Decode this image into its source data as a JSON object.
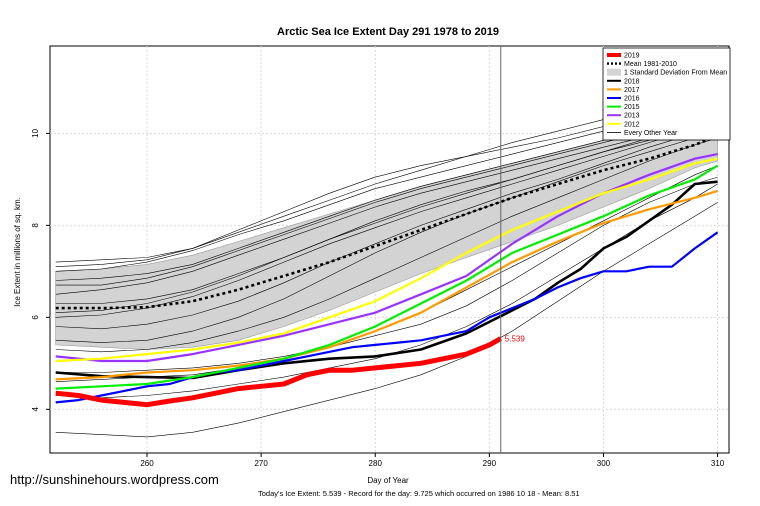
{
  "watermark": "http://sunshinehours.wordpress.com",
  "footer": "Today's Ice Extent: 5.539  - Record for the day: 9.725 which occurred on 1986 10 18  - Mean: 8.51",
  "chart_data": {
    "type": "line",
    "title": "Arctic Sea Ice Extent Day 291 1978 to 2019",
    "xlabel": "Day of Year",
    "ylabel": "Ice Extent in millions of sq. km.",
    "xlim": [
      251.5,
      311
    ],
    "ylim": [
      3.05,
      11.9
    ],
    "x_ticks": [
      260,
      270,
      280,
      290,
      300,
      310
    ],
    "y_ticks": [
      4,
      6,
      8,
      10
    ],
    "grid": true,
    "legend_position": "top-right",
    "current_day": 291,
    "current_day_label": "5.539",
    "std_band": {
      "name": "1 Standard Deviation From Mean",
      "color": "#d3d3d3",
      "x": [
        252,
        256,
        260,
        264,
        268,
        272,
        276,
        280,
        284,
        288,
        292,
        296,
        300,
        304,
        308,
        310
      ],
      "upper": [
        7.0,
        7.05,
        7.15,
        7.35,
        7.65,
        7.95,
        8.25,
        8.55,
        8.85,
        9.1,
        9.35,
        9.6,
        9.85,
        10.1,
        10.35,
        10.45
      ],
      "lower": [
        5.4,
        5.35,
        5.3,
        5.35,
        5.5,
        5.8,
        6.15,
        6.55,
        6.95,
        7.3,
        7.65,
        8.0,
        8.4,
        8.8,
        9.25,
        9.4
      ]
    },
    "other_years": {
      "name": "Every Other Year",
      "color": "#000000",
      "x": [
        252,
        256,
        260,
        264,
        268,
        272,
        276,
        280,
        284,
        288,
        292,
        296,
        300,
        304,
        308,
        310
      ],
      "lines": [
        [
          7.0,
          7.05,
          7.2,
          7.45,
          7.8,
          8.1,
          8.45,
          8.8,
          9.05,
          9.3,
          9.55,
          9.8,
          10.05,
          10.3,
          10.55,
          10.6
        ],
        [
          6.8,
          6.85,
          6.95,
          7.15,
          7.5,
          7.85,
          8.2,
          8.55,
          8.85,
          9.1,
          9.35,
          9.6,
          9.85,
          10.1,
          10.35,
          10.45
        ],
        [
          6.5,
          6.6,
          6.75,
          7.0,
          7.35,
          7.7,
          8.05,
          8.4,
          8.7,
          8.95,
          9.2,
          9.45,
          9.7,
          9.95,
          10.2,
          10.3
        ],
        [
          7.2,
          7.25,
          7.3,
          7.5,
          7.9,
          8.3,
          8.7,
          9.05,
          9.3,
          9.5,
          9.7,
          9.9,
          10.15,
          10.4,
          10.7,
          10.8
        ],
        [
          6.3,
          6.3,
          6.4,
          6.6,
          6.95,
          7.3,
          7.7,
          8.1,
          8.45,
          8.75,
          9.0,
          9.3,
          9.6,
          9.9,
          10.2,
          10.35
        ],
        [
          6.0,
          6.05,
          6.2,
          6.45,
          6.8,
          7.2,
          7.6,
          7.95,
          8.3,
          8.6,
          8.9,
          9.2,
          9.5,
          9.8,
          10.1,
          10.25
        ],
        [
          5.8,
          5.75,
          5.85,
          6.05,
          6.35,
          6.75,
          7.2,
          7.6,
          8.0,
          8.35,
          8.7,
          9.0,
          9.35,
          9.7,
          10.0,
          10.1
        ],
        [
          5.5,
          5.45,
          5.5,
          5.7,
          6.0,
          6.4,
          6.9,
          7.4,
          7.85,
          8.25,
          8.6,
          8.95,
          9.3,
          9.6,
          9.9,
          10.0
        ],
        [
          5.3,
          5.25,
          5.3,
          5.45,
          5.7,
          6.0,
          6.4,
          6.85,
          7.3,
          7.75,
          8.2,
          8.6,
          9.0,
          9.4,
          9.75,
          9.9
        ],
        [
          4.6,
          4.65,
          4.7,
          4.75,
          4.9,
          5.1,
          5.35,
          5.7,
          6.1,
          6.6,
          7.1,
          7.6,
          8.1,
          8.6,
          9.1,
          9.3
        ],
        [
          4.8,
          4.8,
          4.85,
          4.9,
          5.0,
          5.15,
          5.35,
          5.6,
          5.85,
          6.25,
          6.8,
          7.4,
          8.0,
          8.5,
          8.9,
          9.05
        ],
        [
          4.3,
          4.25,
          4.3,
          4.4,
          4.55,
          4.7,
          4.9,
          5.1,
          5.4,
          5.8,
          6.3,
          6.9,
          7.5,
          8.1,
          8.6,
          8.9
        ],
        [
          3.5,
          3.45,
          3.4,
          3.5,
          3.7,
          3.95,
          4.2,
          4.45,
          4.75,
          5.15,
          5.7,
          6.35,
          7.0,
          7.6,
          8.2,
          8.5
        ],
        [
          7.1,
          7.15,
          7.25,
          7.5,
          7.85,
          8.2,
          8.55,
          8.9,
          9.2,
          9.5,
          9.8,
          10.05,
          10.3,
          10.6,
          10.9,
          11.0
        ],
        [
          6.7,
          6.7,
          6.85,
          7.1,
          7.45,
          7.8,
          8.15,
          8.5,
          8.8,
          9.05,
          9.3,
          9.55,
          9.8,
          10.05,
          10.3,
          10.4
        ],
        [
          6.1,
          6.15,
          6.3,
          6.55,
          6.9,
          7.3,
          7.7,
          8.05,
          8.4,
          8.7,
          9.0,
          9.3,
          9.6,
          9.85,
          10.1,
          10.2
        ]
      ]
    },
    "series": [
      {
        "name": "Mean 1981-2010",
        "color": "#000000",
        "dashed": true,
        "x": [
          252,
          256,
          260,
          264,
          268,
          272,
          276,
          280,
          284,
          288,
          292,
          296,
          300,
          304,
          308,
          310
        ],
        "values": [
          6.2,
          6.2,
          6.22,
          6.35,
          6.6,
          6.9,
          7.2,
          7.55,
          7.9,
          8.25,
          8.6,
          8.9,
          9.2,
          9.45,
          9.75,
          9.95
        ]
      },
      {
        "name": "2018",
        "color": "#000000",
        "x": [
          252,
          256,
          260,
          264,
          268,
          272,
          276,
          280,
          284,
          288,
          290,
          292,
          294,
          296,
          298,
          300,
          302,
          304,
          306,
          308,
          310
        ],
        "values": [
          4.8,
          4.72,
          4.7,
          4.68,
          4.85,
          5.0,
          5.1,
          5.15,
          5.3,
          5.65,
          5.9,
          6.15,
          6.4,
          6.75,
          7.05,
          7.5,
          7.75,
          8.1,
          8.45,
          8.9,
          8.95
        ]
      },
      {
        "name": "2017",
        "color": "#ff9900",
        "x": [
          252,
          256,
          260,
          264,
          268,
          272,
          276,
          280,
          284,
          288,
          292,
          296,
          300,
          304,
          308,
          310
        ],
        "values": [
          4.65,
          4.7,
          4.8,
          4.85,
          4.95,
          5.1,
          5.35,
          5.7,
          6.1,
          6.65,
          7.2,
          7.65,
          8.05,
          8.35,
          8.6,
          8.75
        ]
      },
      {
        "name": "2016",
        "color": "#0000ff",
        "x": [
          252,
          254,
          256,
          258,
          260,
          262,
          264,
          266,
          268,
          270,
          272,
          274,
          276,
          278,
          280,
          282,
          284,
          286,
          288,
          290,
          292,
          294,
          296,
          298,
          300,
          302,
          304,
          306,
          308,
          310
        ],
        "values": [
          4.15,
          4.2,
          4.3,
          4.4,
          4.5,
          4.55,
          4.7,
          4.8,
          4.85,
          4.95,
          5.05,
          5.15,
          5.25,
          5.35,
          5.4,
          5.45,
          5.5,
          5.6,
          5.7,
          6.0,
          6.2,
          6.4,
          6.65,
          6.85,
          7.0,
          7.0,
          7.1,
          7.1,
          7.5,
          7.85
        ]
      },
      {
        "name": "2015",
        "color": "#00ee00",
        "x": [
          252,
          256,
          260,
          264,
          268,
          272,
          276,
          280,
          284,
          288,
          292,
          296,
          300,
          304,
          308,
          310
        ],
        "values": [
          4.45,
          4.5,
          4.55,
          4.7,
          4.9,
          5.1,
          5.4,
          5.8,
          6.3,
          6.8,
          7.4,
          7.8,
          8.2,
          8.65,
          9.0,
          9.3
        ]
      },
      {
        "name": "2013",
        "color": "#9933ff",
        "x": [
          252,
          256,
          260,
          264,
          268,
          272,
          276,
          280,
          284,
          288,
          292,
          296,
          300,
          304,
          308,
          310
        ],
        "values": [
          5.15,
          5.05,
          5.05,
          5.2,
          5.4,
          5.6,
          5.85,
          6.1,
          6.5,
          6.9,
          7.6,
          8.2,
          8.7,
          9.1,
          9.45,
          9.55
        ]
      },
      {
        "name": "2012",
        "color": "#ffff00",
        "x": [
          252,
          256,
          260,
          264,
          268,
          272,
          276,
          280,
          284,
          288,
          292,
          296,
          300,
          304,
          308,
          310
        ],
        "values": [
          5.05,
          5.1,
          5.2,
          5.3,
          5.45,
          5.65,
          6.0,
          6.35,
          6.85,
          7.4,
          7.9,
          8.3,
          8.7,
          9.0,
          9.35,
          9.45
        ]
      },
      {
        "name": "2019",
        "color": "#ff0000",
        "x": [
          252,
          254,
          256,
          258,
          260,
          262,
          264,
          266,
          268,
          270,
          272,
          274,
          276,
          278,
          280,
          282,
          284,
          286,
          288,
          290,
          291
        ],
        "values": [
          4.35,
          4.3,
          4.2,
          4.15,
          4.1,
          4.18,
          4.25,
          4.35,
          4.45,
          4.5,
          4.55,
          4.75,
          4.85,
          4.85,
          4.9,
          4.95,
          5.0,
          5.1,
          5.2,
          5.4,
          5.539
        ]
      }
    ],
    "legend": [
      {
        "label": "2019",
        "color": "#ff0000",
        "style": "thick"
      },
      {
        "label": "Mean 1981-2010",
        "color": "#000000",
        "style": "dashed"
      },
      {
        "label": "1 Standard Deviation From Mean",
        "color": "#d3d3d3",
        "style": "box"
      },
      {
        "label": "2018",
        "color": "#000000",
        "style": "line"
      },
      {
        "label": "2017",
        "color": "#ff9900",
        "style": "line"
      },
      {
        "label": "2016",
        "color": "#0000ff",
        "style": "line"
      },
      {
        "label": "2015",
        "color": "#00ee00",
        "style": "line"
      },
      {
        "label": "2013",
        "color": "#9933ff",
        "style": "line"
      },
      {
        "label": "2012",
        "color": "#ffff00",
        "style": "line"
      },
      {
        "label": "Every Other Year",
        "color": "#000000",
        "style": "thin"
      }
    ]
  }
}
